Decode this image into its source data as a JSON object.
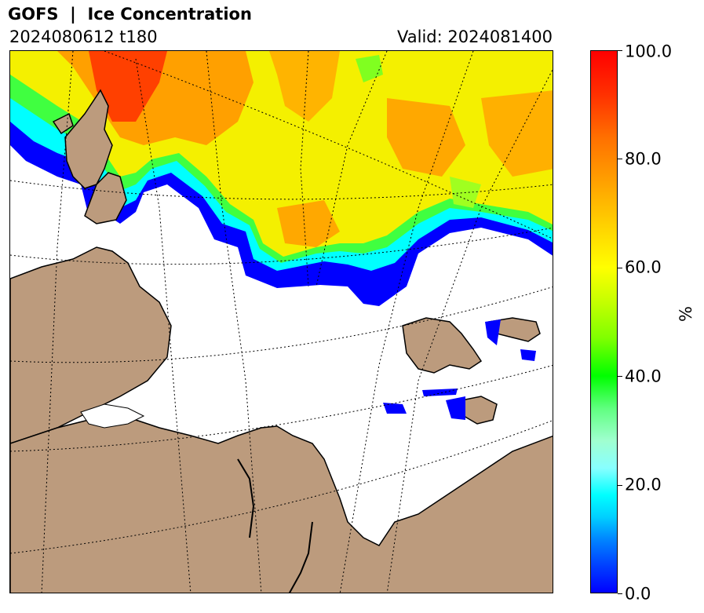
{
  "header": {
    "title": "GOFS  |  Ice Concentration",
    "run": "2024080612 t180",
    "valid": "Valid: 2024081400"
  },
  "colorbar": {
    "unit": "%",
    "ticks": [
      "0.0",
      "20.0",
      "40.0",
      "60.0",
      "80.0",
      "100.0"
    ],
    "min": 0,
    "max": 100,
    "colors": {
      "low": "#0000ff",
      "mid_low": "#00ffff",
      "mid": "#00ff00",
      "mid_high": "#ffff00",
      "high": "#ff0000"
    }
  },
  "map": {
    "land_color": "#bc9b7d",
    "ocean_color": "#ffffff",
    "gridlines": "dotted"
  }
}
